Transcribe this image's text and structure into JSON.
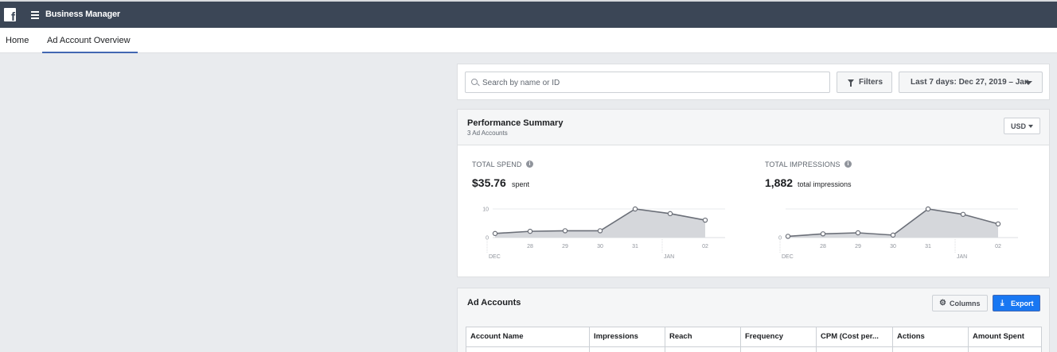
{
  "app": {
    "title": "Business Manager",
    "logo_icon": "facebook-logo-icon",
    "menu_icon": "hamburger-menu-icon"
  },
  "tabs": [
    {
      "label": "Home",
      "active": false
    },
    {
      "label": "Ad Account Overview",
      "active": true
    }
  ],
  "search": {
    "placeholder": "Search by name or ID",
    "value": "",
    "icon": "search-icon"
  },
  "toolbar": {
    "filters_label": "Filters",
    "filters_icon": "filter-icon",
    "date_range_label": "Last 7 days: Dec 27, 2019 – Jan",
    "date_range_icon": "caret-down-icon"
  },
  "performance_summary": {
    "title": "Performance Summary",
    "subtitle": "3 Ad Accounts",
    "currency": "USD",
    "metrics": [
      {
        "label": "TOTAL SPEND",
        "value": "$35.76",
        "unit": "spent"
      },
      {
        "label": "TOTAL IMPRESSIONS",
        "value": "1,882",
        "unit": "total impressions"
      }
    ]
  },
  "chart_data": [
    {
      "type": "area",
      "title": "TOTAL SPEND",
      "x": [
        "27",
        "28",
        "29",
        "30",
        "31",
        "01",
        "02"
      ],
      "tick_labels": [
        "28",
        "29",
        "30",
        "31",
        "02"
      ],
      "month_labels": [
        "DEC",
        "JAN"
      ],
      "series": [
        {
          "values": [
            1.5,
            2.3,
            2.5,
            2.5,
            10.5,
            8.8,
            6.4
          ]
        }
      ],
      "y_ticks": [
        "0",
        "10"
      ],
      "ylim": [
        0,
        10.5
      ],
      "grid": true,
      "color": "#6b6f78"
    },
    {
      "type": "area",
      "title": "TOTAL IMPRESSIONS",
      "x": [
        "27",
        "28",
        "29",
        "30",
        "31",
        "01",
        "02"
      ],
      "tick_labels": [
        "28",
        "29",
        "30",
        "31",
        "02"
      ],
      "month_labels": [
        "DEC",
        "JAN"
      ],
      "series": [
        {
          "values": [
            30,
            90,
            115,
            60,
            690,
            560,
            330
          ]
        }
      ],
      "y_ticks": [
        "0"
      ],
      "ylim": [
        0,
        690
      ],
      "grid": true,
      "color": "#6b6f78"
    }
  ],
  "ad_accounts": {
    "title": "Ad Accounts",
    "columns_label": "Columns",
    "columns_icon": "gear-icon",
    "export_label": "Export",
    "export_icon": "download-icon",
    "table_headers": [
      "Account Name",
      "Impressions",
      "Reach",
      "Frequency",
      "CPM (Cost per...",
      "Actions",
      "Amount Spent"
    ]
  }
}
